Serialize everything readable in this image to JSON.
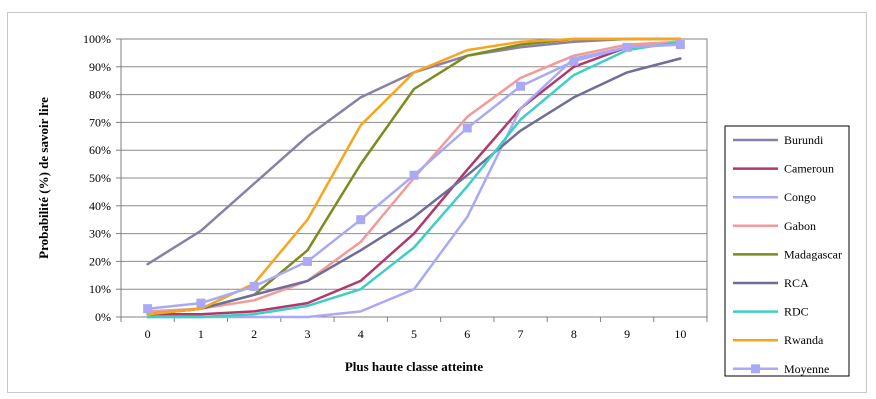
{
  "chart_data": {
    "type": "line",
    "xlabel": "Plus haute classe atteinte",
    "ylabel": "Probabilité (%) de savoir lire",
    "x": [
      0,
      1,
      2,
      3,
      4,
      5,
      6,
      7,
      8,
      9,
      10
    ],
    "xticks": [
      "0",
      "1",
      "2",
      "3",
      "4",
      "5",
      "6",
      "7",
      "8",
      "9",
      "10"
    ],
    "ylim": [
      0,
      100
    ],
    "yticks": [
      "0%",
      "10%",
      "20%",
      "30%",
      "40%",
      "50%",
      "60%",
      "70%",
      "80%",
      "90%",
      "100%"
    ],
    "grid": true,
    "legend_position": "right",
    "series": [
      {
        "name": "Burundi",
        "color": "#8a80a6",
        "marker": "none",
        "values": [
          19,
          31,
          48,
          65,
          79,
          88,
          94,
          97,
          99,
          100,
          100
        ]
      },
      {
        "name": "Cameroun",
        "color": "#b0386a",
        "marker": "none",
        "values": [
          1,
          1,
          2,
          5,
          13,
          30,
          53,
          75,
          90,
          97,
          99
        ]
      },
      {
        "name": "Congo",
        "color": "#a9a9f5",
        "marker": "none",
        "values": [
          0,
          0,
          0,
          0,
          2,
          10,
          36,
          75,
          93,
          97,
          99
        ]
      },
      {
        "name": "Gabon",
        "color": "#f29a9a",
        "marker": "none",
        "values": [
          2,
          3,
          6,
          13,
          27,
          50,
          72,
          86,
          94,
          98,
          99
        ]
      },
      {
        "name": "Madagascar",
        "color": "#7c8a1e",
        "marker": "none",
        "values": [
          1,
          3,
          8,
          24,
          55,
          82,
          94,
          98,
          100,
          100,
          100
        ]
      },
      {
        "name": "RCA",
        "color": "#6f6d9a",
        "marker": "none",
        "values": [
          1,
          3,
          8,
          13,
          24,
          36,
          51,
          67,
          79,
          88,
          93
        ]
      },
      {
        "name": "RDC",
        "color": "#3ecfc4",
        "marker": "none",
        "values": [
          0,
          0,
          1,
          4,
          10,
          25,
          47,
          71,
          87,
          96,
          99
        ]
      },
      {
        "name": "Rwanda",
        "color": "#f7a51c",
        "marker": "none",
        "values": [
          1,
          3,
          12,
          35,
          69,
          88,
          96,
          99,
          100,
          100,
          100
        ]
      },
      {
        "name": "Moyenne",
        "color": "#a9a9f5",
        "marker": "square",
        "values": [
          3,
          5,
          11,
          20,
          35,
          51,
          68,
          83,
          92,
          97,
          98
        ]
      }
    ]
  }
}
